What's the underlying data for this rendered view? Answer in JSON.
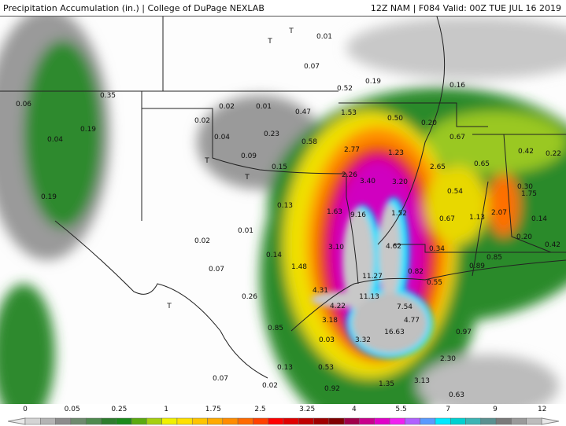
{
  "header": {
    "title": "Precipitation Accumulation (in.) | College of DuPage NEXLAB",
    "run_info": "12Z NAM | F084 Valid: 00Z TUE JUL 16 2019"
  },
  "map": {
    "values": [
      "0.06",
      "0.35",
      "0.19",
      "0.04",
      "0.19",
      "0.02",
      "0.01",
      "0.02",
      "0.04",
      "0.23",
      "0.09",
      "0.15",
      "0.01",
      "0.07",
      "0.19",
      "0.52",
      "0.47",
      "1.53",
      "0.50",
      "0.20",
      "0.16",
      "0.67",
      "0.58",
      "2.77",
      "1.23",
      "2.65",
      "0.65",
      "0.42",
      "0.22",
      "2.26",
      "3.40",
      "3.20",
      "0.54",
      "0.30",
      "1.75",
      "2.07",
      "1.13",
      "0.67",
      "0.14",
      "0.13",
      "1.63",
      "9.16",
      "1.52",
      "0.20",
      "0.42",
      "0.01",
      "0.02",
      "0.14",
      "3.10",
      "4.62",
      "0.34",
      "0.85",
      "1.48",
      "0.07",
      "0.82",
      "0.89",
      "11.27",
      "0.55",
      "4.31",
      "11.13",
      "0.26",
      "7.54",
      "4.22",
      "3.18",
      "4.77",
      "0.85",
      "0.97",
      "16.63",
      "0.03",
      "3.32",
      "0.13",
      "0.53",
      "2.30",
      "0.07",
      "0.02",
      "0.92",
      "1.35",
      "3.13",
      "0.63"
    ],
    "trace_marker": "T"
  },
  "legend": {
    "ticks": [
      "0",
      "0.05",
      "0.25",
      "1",
      "1.75",
      "2.5",
      "3.25",
      "4",
      "5.5",
      "7",
      "9",
      "12"
    ],
    "colors": [
      "#d4d4d4",
      "#b4b4b4",
      "#8c8c8c",
      "#6e8a6e",
      "#4f8a4f",
      "#2e7d2e",
      "#1a8a1a",
      "#5aaa10",
      "#a6cf10",
      "#f0f000",
      "#ffe000",
      "#ffc400",
      "#ffaa00",
      "#ff8c00",
      "#ff6a00",
      "#ff4000",
      "#ff0000",
      "#e00000",
      "#c00000",
      "#a00000",
      "#800000",
      "#a0004a",
      "#c8008c",
      "#e000c8",
      "#f020f0",
      "#b060ff",
      "#5a9aff",
      "#00e8ff",
      "#00d0d0",
      "#3cb4b4",
      "#5a9090",
      "#7a7a7a",
      "#9a9a9a",
      "#bcbcbc"
    ]
  }
}
